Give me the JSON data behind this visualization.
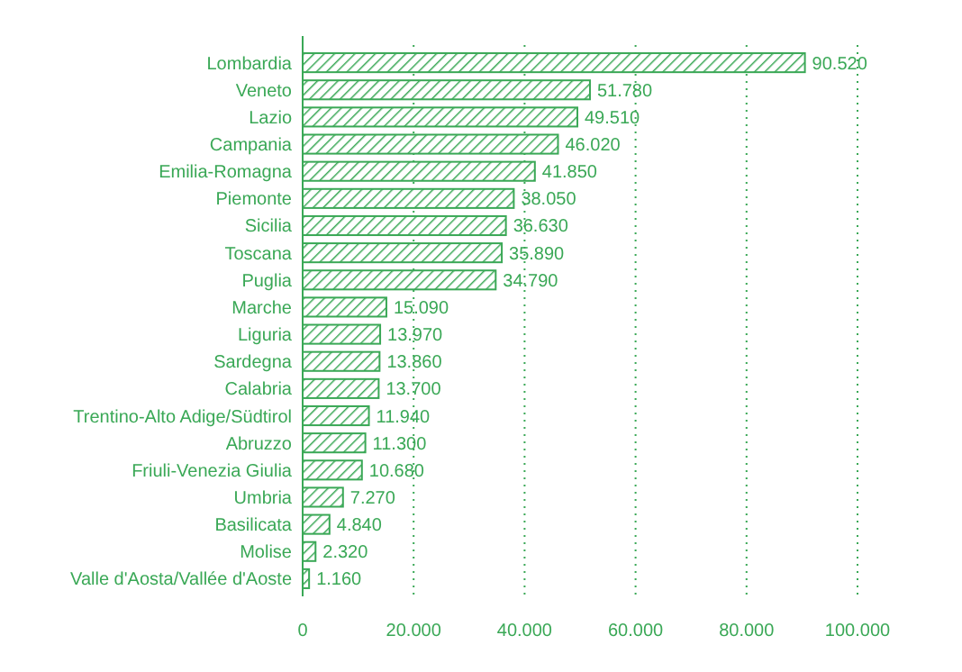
{
  "chart_data": {
    "type": "bar",
    "orientation": "horizontal",
    "categories": [
      "Lombardia",
      "Veneto",
      "Lazio",
      "Campania",
      "Emilia-Romagna",
      "Piemonte",
      "Sicilia",
      "Toscana",
      "Puglia",
      "Marche",
      "Liguria",
      "Sardegna",
      "Calabria",
      "Trentino-Alto Adige/Südtirol",
      "Abruzzo",
      "Friuli-Venezia Giulia",
      "Umbria",
      "Basilicata",
      "Molise",
      "Valle d'Aosta/Vallée d'Aoste"
    ],
    "values": [
      90520,
      51780,
      49510,
      46020,
      41850,
      38050,
      36630,
      35890,
      34790,
      15090,
      13970,
      13860,
      13700,
      11940,
      11300,
      10680,
      7270,
      4840,
      2320,
      1160
    ],
    "value_labels": [
      "90.520",
      "51.780",
      "49.510",
      "46.020",
      "41.850",
      "38.050",
      "36.630",
      "35.890",
      "34.790",
      "15.090",
      "13.970",
      "13.860",
      "13.700",
      "11.940",
      "11.300",
      "10.680",
      "7.270",
      "4.840",
      "2.320",
      "1.160"
    ],
    "color": "#3aa856",
    "xlim": [
      0,
      100000
    ],
    "xticks": [
      0,
      {
        "value": 20000,
        "label": "20.000"
      },
      {
        "value": 40000,
        "label": "40.000"
      },
      {
        "value": 60000,
        "label": "60.000"
      },
      {
        "value": 80000,
        "label": "80.000"
      },
      {
        "value": 100000,
        "label": "100.000"
      }
    ],
    "grid": "x"
  }
}
